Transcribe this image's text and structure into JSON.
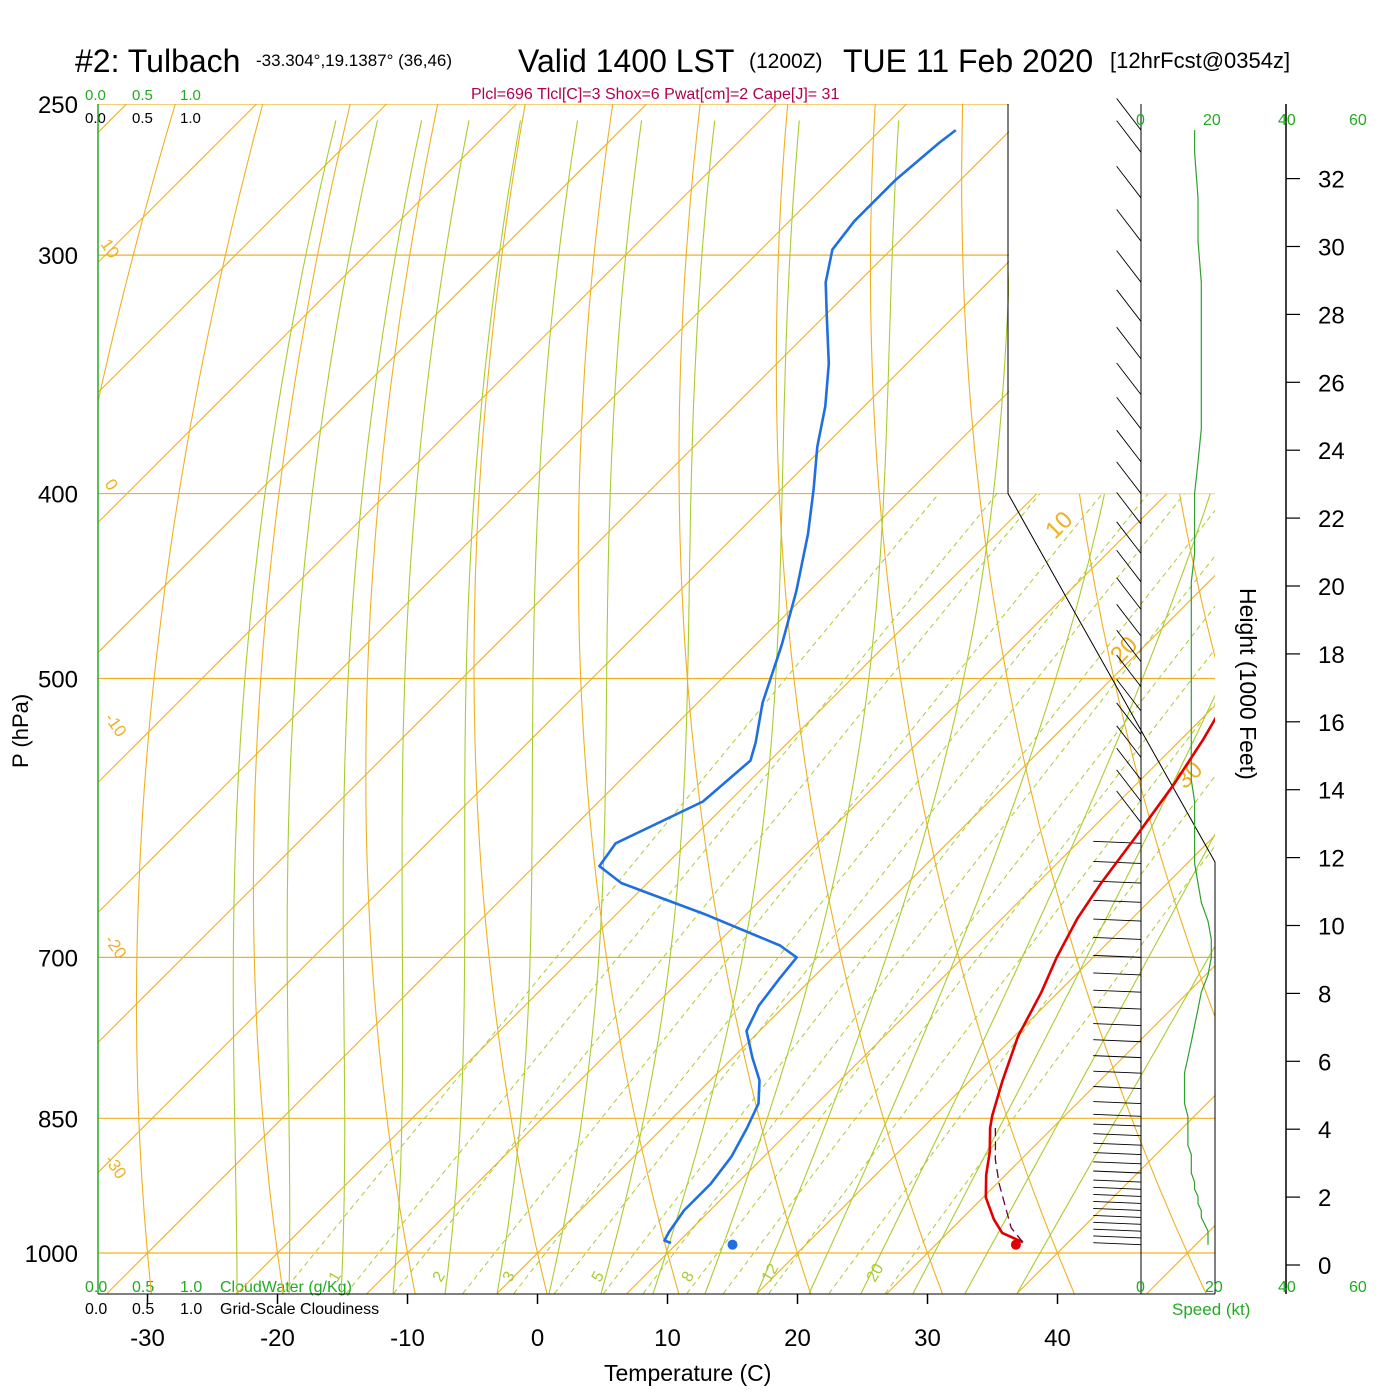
{
  "header": {
    "station": "#2: Tulbach",
    "coords": "-33.304°,19.1387° (36,46)",
    "valid": "Valid 1400 LST",
    "zulu": "(1200Z)",
    "date": "TUE 11 Feb 2020",
    "fcst": "[12hrFcst@0354z]",
    "indices": "Plcl=696 Tlcl[C]=3 Shox=6 Pwat[cm]=2 Cape[J]= 31"
  },
  "colors": {
    "temperature": "#e00000",
    "dewpoint": "#1f6fe0",
    "isotherm": "#f0b020",
    "dry_adiabat": "#f0b020",
    "moist_adiabat": "#a8cc30",
    "mixing_ratio": "#a8cc30",
    "speed": "#2ea02e",
    "indices": "#b00050",
    "parcel": "#6a0040"
  },
  "scales": {
    "cloud_top_green": [
      "0.0",
      "0.5",
      "1.0"
    ],
    "cloud_top_black": [
      "0.0",
      "0.5",
      "1.0"
    ],
    "cloudwater_label": "CloudWater (g/Kg)",
    "cloudiness_label": "Grid-Scale Cloudiness",
    "speed_top": [
      "0",
      "20",
      "40",
      "60"
    ],
    "speed_bottom": [
      "0",
      "20",
      "40",
      "60"
    ],
    "speed_label": "Speed (kt)"
  },
  "chart_data": {
    "type": "line",
    "title": "#2: Tulbach -33.304°,19.1387° (36,46)  Valid 1400 LST (1200Z) TUE 11 Feb 2020 [12hrFcst@0354z]",
    "xlabel": "Temperature (C)",
    "ylabel": "P (hPa)",
    "y2label": "Height (1000 Feet)",
    "xlim": [
      -34,
      40
    ],
    "ylim": [
      1000,
      250
    ],
    "yscale": "log",
    "x_ticks": [
      -30,
      -20,
      -10,
      0,
      10,
      20,
      30,
      40
    ],
    "y_ticks": [
      250,
      300,
      400,
      500,
      700,
      850,
      1000
    ],
    "height_ticks": [
      0,
      2,
      4,
      6,
      8,
      10,
      12,
      14,
      16,
      18,
      20,
      22,
      24,
      26,
      28,
      30,
      32
    ],
    "series": [
      {
        "key": "temperature",
        "points": [
          [
            36.5,
            987
          ],
          [
            34.2,
            976
          ],
          [
            32.5,
            960
          ],
          [
            30.2,
            935
          ],
          [
            28.5,
            910
          ],
          [
            27.0,
            885
          ],
          [
            25.2,
            860
          ],
          [
            24.4,
            847
          ],
          [
            22.5,
            812
          ],
          [
            20.3,
            770
          ],
          [
            18.7,
            730
          ],
          [
            17.2,
            700
          ],
          [
            15.8,
            668
          ],
          [
            14.9,
            640
          ],
          [
            14.0,
            605
          ],
          [
            12.9,
            568
          ],
          [
            11.7,
            538
          ],
          [
            10.0,
            505
          ],
          [
            8.0,
            470
          ],
          [
            5.0,
            430
          ],
          [
            1.9,
            398
          ],
          [
            -2.0,
            362
          ],
          [
            -5.8,
            330
          ],
          [
            -9.5,
            302
          ],
          [
            -13.0,
            277
          ],
          [
            -17.5,
            257
          ]
        ]
      },
      {
        "key": "dewpoint",
        "points": [
          [
            9.5,
            988
          ],
          [
            8.8,
            985
          ],
          [
            8.5,
            975
          ],
          [
            8.0,
            950
          ],
          [
            8.0,
            920
          ],
          [
            7.5,
            890
          ],
          [
            6.5,
            860
          ],
          [
            5.5,
            835
          ],
          [
            3.8,
            812
          ],
          [
            1.5,
            790
          ],
          [
            -1.0,
            765
          ],
          [
            -2.0,
            742
          ],
          [
            -2.5,
            718
          ],
          [
            -2.8,
            700
          ],
          [
            -5.0,
            690
          ],
          [
            -13.0,
            665
          ],
          [
            -22.0,
            640
          ],
          [
            -25.0,
            627
          ],
          [
            -25.5,
            610
          ],
          [
            -22.0,
            580
          ],
          [
            -21.5,
            552
          ],
          [
            -22.5,
            540
          ],
          [
            -25.0,
            515
          ],
          [
            -28.0,
            480
          ],
          [
            -31.0,
            450
          ],
          [
            -34.5,
            420
          ],
          [
            -37.5,
            398
          ],
          [
            -40.5,
            378
          ],
          [
            -43.0,
            360
          ],
          [
            -46.0,
            342
          ],
          [
            -50.0,
            322
          ],
          [
            -52.5,
            310
          ],
          [
            -54.5,
            298
          ],
          [
            -55.0,
            288
          ],
          [
            -55.0,
            274
          ],
          [
            -54.5,
            262
          ],
          [
            -54.2,
            258
          ]
        ]
      },
      {
        "key": "parcel",
        "points": [
          [
            36.5,
            987
          ],
          [
            34.5,
            970
          ],
          [
            32.8,
            950
          ],
          [
            30.2,
            920
          ],
          [
            28.0,
            893
          ],
          [
            26.5,
            872
          ],
          [
            25.6,
            860
          ]
        ]
      }
    ],
    "surface_markers": [
      {
        "key": "temperature",
        "value": 36.8,
        "p": 990
      },
      {
        "key": "dewpoint",
        "value": 15.0,
        "p": 990
      }
    ],
    "isotherm_labels": [
      "0",
      "10",
      "20",
      "30"
    ],
    "dry_adiabat_labels": [
      "10",
      "0",
      "-10",
      "-20",
      "-30"
    ],
    "mixing_ratio_labels": [
      "1",
      "2",
      "3",
      "5",
      "8",
      "12",
      "20"
    ],
    "mixing_ratios": [
      1,
      2,
      3,
      5,
      8,
      12,
      20
    ],
    "wind_speed_kt": [
      [
        20,
        990
      ],
      [
        20,
        982
      ],
      [
        20,
        974
      ],
      [
        19,
        966
      ],
      [
        18,
        958
      ],
      [
        18,
        950
      ],
      [
        17,
        942
      ],
      [
        17,
        934
      ],
      [
        16,
        926
      ],
      [
        16,
        918
      ],
      [
        15,
        908
      ],
      [
        15,
        898
      ],
      [
        15,
        888
      ],
      [
        14,
        878
      ],
      [
        14,
        868
      ],
      [
        14,
        858
      ],
      [
        14,
        848
      ],
      [
        13,
        835
      ],
      [
        13,
        820
      ],
      [
        13,
        805
      ],
      [
        14,
        790
      ],
      [
        15,
        775
      ],
      [
        16,
        760
      ],
      [
        17,
        745
      ],
      [
        18,
        730
      ],
      [
        20,
        715
      ],
      [
        21,
        700
      ],
      [
        21,
        685
      ],
      [
        20,
        670
      ],
      [
        18,
        655
      ],
      [
        17,
        640
      ],
      [
        16,
        625
      ],
      [
        16,
        610
      ],
      [
        16,
        595
      ],
      [
        16,
        580
      ],
      [
        15,
        565
      ],
      [
        15,
        550
      ],
      [
        15,
        535
      ],
      [
        15,
        520
      ],
      [
        15,
        505
      ],
      [
        15,
        490
      ],
      [
        15,
        475
      ],
      [
        15,
        460
      ],
      [
        15,
        445
      ],
      [
        16,
        430
      ],
      [
        16,
        415
      ],
      [
        16,
        400
      ],
      [
        17,
        385
      ],
      [
        18,
        370
      ],
      [
        18,
        355
      ],
      [
        18,
        340
      ],
      [
        18,
        325
      ],
      [
        18,
        310
      ],
      [
        17,
        295
      ],
      [
        17,
        280
      ],
      [
        16,
        265
      ],
      [
        16,
        258
      ]
    ]
  }
}
